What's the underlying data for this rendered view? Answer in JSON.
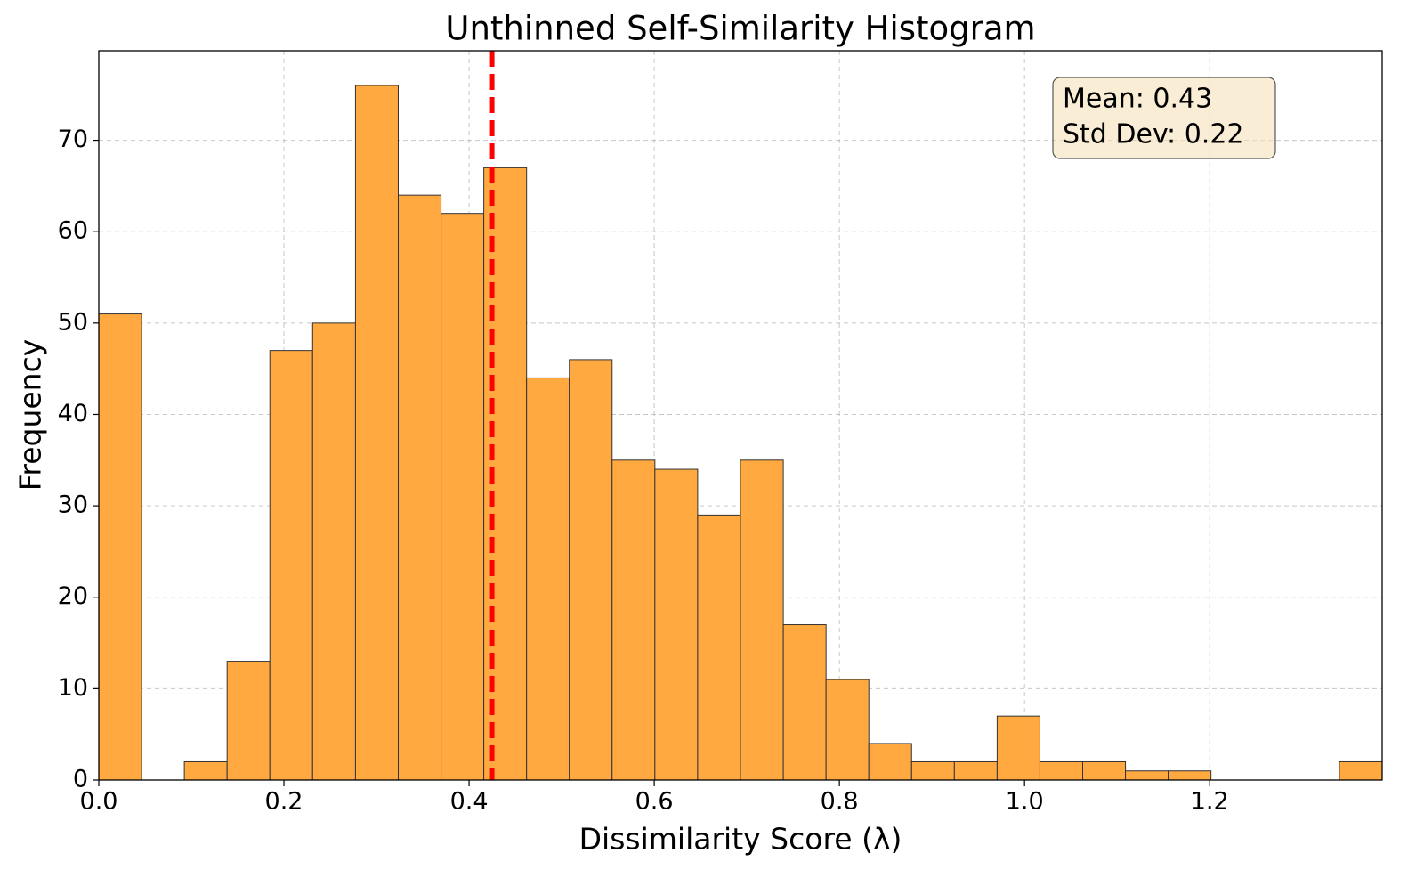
{
  "chart_data": {
    "type": "histogram",
    "title": "Unthinned Self-Similarity Histogram",
    "x_label": "Dissimilarity Score (λ)",
    "y_label": "Frequency",
    "bins": [
      0,
      0.0462,
      0.0924,
      0.1386,
      0.1848,
      0.231,
      0.2773,
      0.3235,
      0.3697,
      0.4159,
      0.4621,
      0.5083,
      0.5545,
      0.6007,
      0.6469,
      0.6931,
      0.7394,
      0.7856,
      0.8318,
      0.878,
      0.9242,
      0.9704,
      1.0166,
      1.0628,
      1.109,
      1.1552,
      1.2014,
      1.2477,
      1.2939,
      1.3401,
      1.3863
    ],
    "values": [
      51,
      0,
      2,
      13,
      47,
      50,
      76,
      64,
      62,
      67,
      44,
      46,
      35,
      34,
      29,
      35,
      17,
      11,
      4,
      2,
      2,
      7,
      2,
      2,
      1,
      1,
      0,
      0,
      0,
      2
    ],
    "color": "#ffa940",
    "edge_color": "#333333",
    "mean_line": {
      "x": 0.425,
      "color": "#ff0000"
    },
    "annotation": [
      "Mean: 0.43",
      "Std Dev: 0.22"
    ],
    "xlim": [
      0,
      1.3863
    ],
    "ylim": [
      0,
      79.8
    ],
    "xticks": [
      {
        "value": 0,
        "label": "0.0"
      },
      0.2,
      0.4,
      0.6,
      0.8,
      {
        "value": 1,
        "label": "1.0"
      },
      1.2
    ],
    "yticks": [
      0,
      10,
      20,
      30,
      40,
      50,
      60,
      70
    ],
    "grid": true
  }
}
